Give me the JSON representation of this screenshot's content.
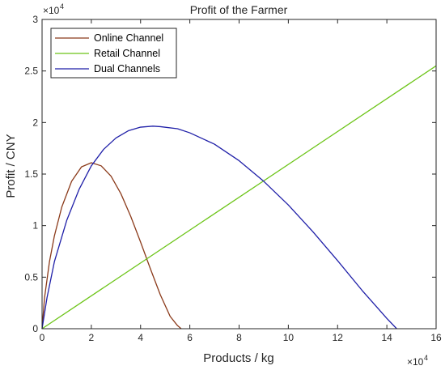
{
  "chart_data": {
    "type": "line",
    "title": "Profit of the Farmer",
    "xlabel": "Products / kg",
    "ylabel": "Profit / CNY",
    "x_multiplier": "×10",
    "x_exponent": "4",
    "y_multiplier": "×10",
    "y_exponent": "4",
    "xlim": [
      0,
      160000
    ],
    "ylim": [
      0,
      30000
    ],
    "x_ticks": [
      0,
      20000,
      40000,
      60000,
      80000,
      100000,
      120000,
      140000,
      160000
    ],
    "x_tick_labels": [
      "0",
      "2",
      "4",
      "6",
      "8",
      "10",
      "12",
      "14",
      "16"
    ],
    "y_ticks": [
      0,
      5000,
      10000,
      15000,
      20000,
      25000,
      30000
    ],
    "y_tick_labels": [
      "0",
      "0.5",
      "1",
      "1.5",
      "2",
      "2.5",
      "3"
    ],
    "grid": false,
    "legend_position": "top-left",
    "series": [
      {
        "name": "Online Channel",
        "color": "#8B3A1A",
        "x": [
          0,
          1000,
          3000,
          5000,
          8000,
          12000,
          16000,
          20000,
          24000,
          28000,
          32000,
          36000,
          40000,
          44000,
          48000,
          52000,
          55000,
          56500
        ],
        "y": [
          0,
          3000,
          6500,
          9000,
          11800,
          14300,
          15700,
          16100,
          15800,
          14800,
          13100,
          10900,
          8400,
          5800,
          3300,
          1200,
          300,
          0
        ]
      },
      {
        "name": "Retail Channel",
        "color": "#6CC417",
        "x": [
          0,
          160000
        ],
        "y": [
          0,
          25500
        ]
      },
      {
        "name": "Dual Channels",
        "color": "#1F1FA8",
        "x": [
          0,
          2000,
          5000,
          10000,
          15000,
          20000,
          25000,
          30000,
          35000,
          40000,
          45000,
          48000,
          55000,
          60000,
          70000,
          80000,
          90000,
          100000,
          110000,
          120000,
          130000,
          140000,
          144000
        ],
        "y": [
          0,
          3000,
          6500,
          10500,
          13500,
          15800,
          17400,
          18500,
          19200,
          19550,
          19650,
          19600,
          19400,
          19000,
          17900,
          16300,
          14300,
          12000,
          9400,
          6600,
          3700,
          1000,
          0
        ]
      }
    ]
  }
}
